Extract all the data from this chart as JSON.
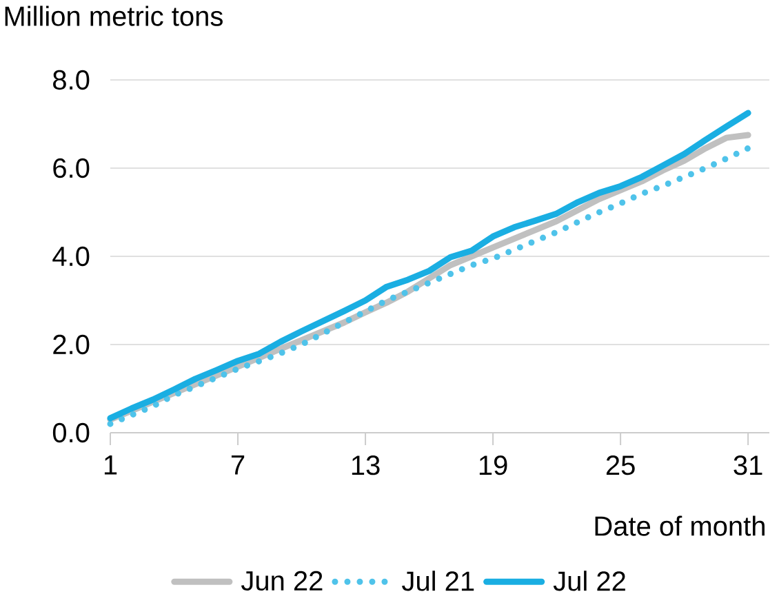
{
  "chart_data": {
    "type": "line",
    "ylabel": "Million metric tons",
    "xlabel": "Date of month",
    "x": [
      1,
      2,
      3,
      4,
      5,
      6,
      7,
      8,
      9,
      10,
      11,
      12,
      13,
      14,
      15,
      16,
      17,
      18,
      19,
      20,
      21,
      22,
      23,
      24,
      25,
      26,
      27,
      28,
      29,
      30,
      31
    ],
    "series": [
      {
        "name": "Jun 22",
        "color": "#c0c0c0",
        "line_style": "solid",
        "values": [
          0.3,
          0.5,
          0.7,
          0.9,
          1.1,
          1.3,
          1.5,
          1.7,
          1.9,
          2.1,
          2.3,
          2.5,
          2.73,
          2.95,
          3.2,
          3.5,
          3.8,
          4.0,
          4.2,
          4.4,
          4.6,
          4.8,
          5.05,
          5.3,
          5.5,
          5.7,
          5.95,
          6.17,
          6.45,
          6.69,
          6.75
        ]
      },
      {
        "name": "Jul 21",
        "color": "#4fc3ea",
        "line_style": "dotted",
        "values": [
          0.2,
          0.4,
          0.6,
          0.85,
          1.05,
          1.25,
          1.45,
          1.62,
          1.8,
          2.0,
          2.25,
          2.5,
          2.75,
          3.0,
          3.2,
          3.4,
          3.6,
          3.8,
          3.95,
          4.15,
          4.35,
          4.55,
          4.78,
          5.0,
          5.2,
          5.42,
          5.6,
          5.8,
          6.0,
          6.22,
          6.45
        ]
      },
      {
        "name": "Jul 22",
        "color": "#1aaee2",
        "line_style": "solid",
        "values": [
          0.33,
          0.55,
          0.75,
          0.98,
          1.22,
          1.42,
          1.63,
          1.79,
          2.06,
          2.3,
          2.53,
          2.76,
          3.0,
          3.31,
          3.47,
          3.67,
          3.98,
          4.13,
          4.45,
          4.66,
          4.81,
          4.97,
          5.23,
          5.44,
          5.59,
          5.8,
          6.06,
          6.32,
          6.64,
          6.95,
          7.25
        ]
      }
    ],
    "xlim": [
      1,
      32
    ],
    "xticks": [
      1,
      7,
      13,
      19,
      25,
      31
    ],
    "ylim": [
      0,
      8
    ],
    "yticks": [
      {
        "value": 0,
        "label": "0.0"
      },
      {
        "value": 2,
        "label": "2.0"
      },
      {
        "value": 4,
        "label": "4.0"
      },
      {
        "value": 6,
        "label": "6.0"
      },
      {
        "value": 8,
        "label": "8.0"
      }
    ],
    "grid": "y",
    "legend": "bottom",
    "marker": "none"
  }
}
